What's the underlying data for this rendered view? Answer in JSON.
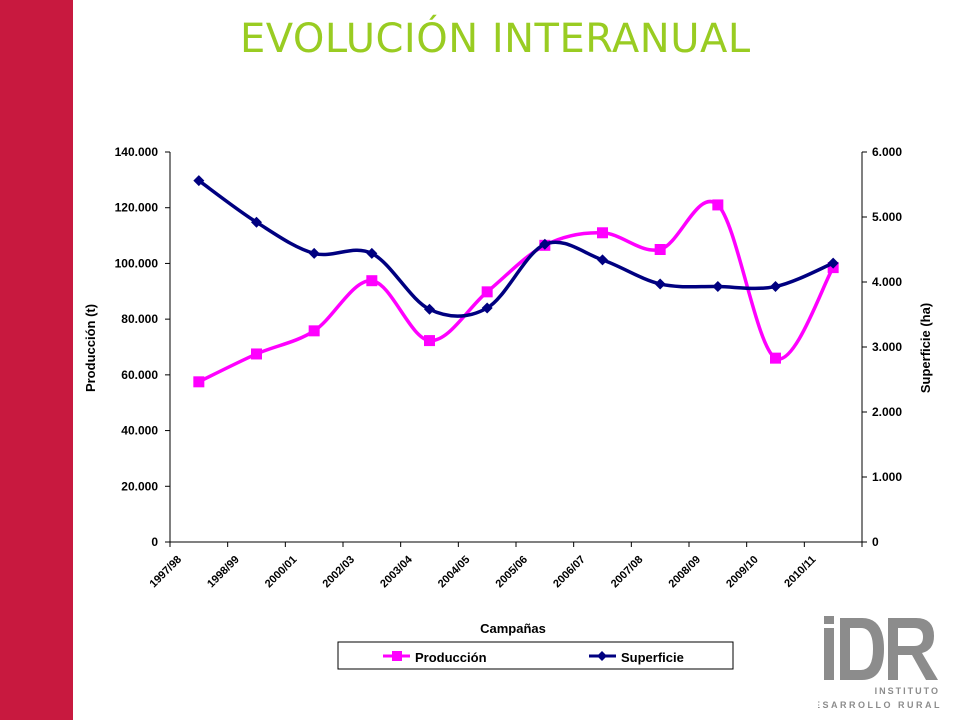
{
  "slide": {
    "title": "EVOLUCIÓN INTERANUAL",
    "accent_color": "#c8193f",
    "title_color": "#99cc22"
  },
  "chart_data": {
    "type": "line",
    "categories": [
      "1997/98",
      "1998/99",
      "2000/01",
      "2002/03",
      "2003/04",
      "2004/05",
      "2005/06",
      "2006/07",
      "2007/08",
      "2008/09",
      "2009/10",
      "2010/11"
    ],
    "xlabel": "Campañas",
    "ylabel_left": "Producción (t)",
    "ylabel_right": "Superficie (ha)",
    "ylim_left": [
      0,
      140000
    ],
    "ylim_right": [
      0,
      6000
    ],
    "yticks_left": [
      "0",
      "20.000",
      "40.000",
      "60.000",
      "80.000",
      "100.000",
      "120.000",
      "140.000"
    ],
    "yticks_right": [
      "0",
      "1.000",
      "2.000",
      "3.000",
      "4.000",
      "5.000",
      "6.000"
    ],
    "grid": false,
    "legend": "bottom",
    "series": [
      {
        "name": "Producción",
        "axis": "left",
        "color": "#ff00ff",
        "marker": "square",
        "values": [
          57500,
          67500,
          75800,
          93800,
          72300,
          89800,
          106500,
          111000,
          105000,
          121000,
          66000,
          98500
        ]
      },
      {
        "name": "Superficie",
        "axis": "right",
        "color": "#000080",
        "marker": "diamond",
        "values": [
          5560,
          4920,
          4440,
          4440,
          3580,
          3600,
          4580,
          4340,
          3970,
          3930,
          3930,
          4290
        ]
      }
    ]
  },
  "logo": {
    "letters": "iDR",
    "line1": "INSTITUTO",
    "line2": "DESARROLLO RURAL"
  }
}
